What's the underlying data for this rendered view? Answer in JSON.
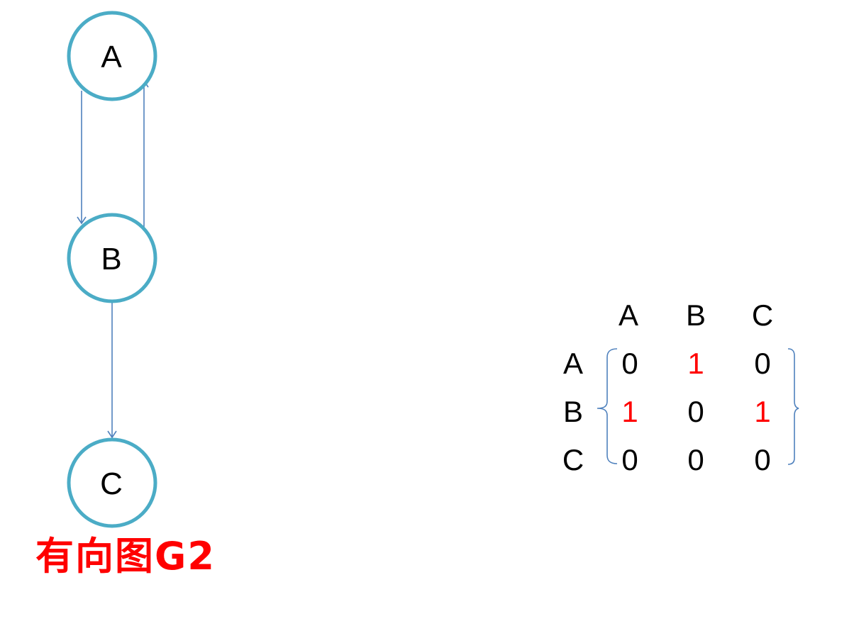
{
  "diagram": {
    "title": "有向图G2",
    "nodes": [
      {
        "id": "A",
        "label": "A"
      },
      {
        "id": "B",
        "label": "B"
      },
      {
        "id": "C",
        "label": "C"
      }
    ],
    "edges": [
      {
        "from": "A",
        "to": "B"
      },
      {
        "from": "B",
        "to": "A"
      },
      {
        "from": "B",
        "to": "C"
      }
    ]
  },
  "matrix": {
    "column_headers": [
      "A",
      "B",
      "C"
    ],
    "row_headers": [
      "A",
      "B",
      "C"
    ],
    "rows": [
      [
        "0",
        "1",
        "0"
      ],
      [
        "1",
        "0",
        "1"
      ],
      [
        "0",
        "0",
        "0"
      ]
    ],
    "highlight": [
      [
        false,
        true,
        false
      ],
      [
        true,
        false,
        true
      ],
      [
        false,
        false,
        false
      ]
    ]
  },
  "colors": {
    "node_stroke": "#4bacc6",
    "edge": "#4f81bd",
    "bracket": "#4f81bd",
    "text": "#000000",
    "highlight_value": "#ff0000",
    "title": "#ff0000"
  }
}
